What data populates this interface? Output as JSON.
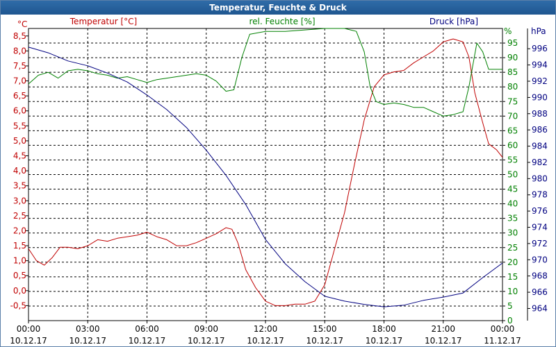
{
  "title": "Temperatur, Feuchte & Druck",
  "chart_data": {
    "type": "line",
    "grid": true,
    "x_ticks": [
      {
        "time": "00:00",
        "date": "10.12.17"
      },
      {
        "time": "03:00",
        "date": "10.12.17"
      },
      {
        "time": "06:00",
        "date": "10.12.17"
      },
      {
        "time": "09:00",
        "date": "10.12.17"
      },
      {
        "time": "12:00",
        "date": "10.12.17"
      },
      {
        "time": "15:00",
        "date": "10.12.17"
      },
      {
        "time": "18:00",
        "date": "10.12.17"
      },
      {
        "time": "21:00",
        "date": "10.12.17"
      },
      {
        "time": "00:00",
        "date": "11.12.17"
      }
    ],
    "x_range_hours": [
      0,
      24
    ],
    "axes": {
      "temperature": {
        "label": "Temperatur [°C]",
        "unit": "°C",
        "color": "#c00000",
        "range": [
          -1,
          8.75
        ],
        "ticks": [
          "8,5",
          "8,0",
          "7,5",
          "7,0",
          "6,5",
          "6,0",
          "5,5",
          "5,0",
          "4,5",
          "4,0",
          "3,5",
          "3,0",
          "2,5",
          "2,0",
          "1,5",
          "1,0",
          "0,5",
          "0,0",
          "-0,5"
        ],
        "tick_values": [
          8.5,
          8,
          7.5,
          7,
          6.5,
          6,
          5.5,
          5,
          4.5,
          4,
          3.5,
          3,
          2.5,
          2,
          1.5,
          1,
          0.5,
          0,
          -0.5
        ]
      },
      "humidity": {
        "label": "rel. Feuchte [%]",
        "unit": "%",
        "color": "#008000",
        "range": [
          0,
          100
        ],
        "ticks": [
          "95",
          "90",
          "85",
          "80",
          "75",
          "70",
          "65",
          "60",
          "55",
          "50",
          "45",
          "40",
          "35",
          "30",
          "25",
          "20",
          "15",
          "10",
          "5",
          "0"
        ],
        "tick_values": [
          95,
          90,
          85,
          80,
          75,
          70,
          65,
          60,
          55,
          50,
          45,
          40,
          35,
          30,
          25,
          20,
          15,
          10,
          5,
          0
        ]
      },
      "pressure": {
        "label": "Druck [hPa]",
        "unit": "hPa",
        "color": "#000080",
        "range": [
          962.5,
          998.5
        ],
        "ticks": [
          "996",
          "994",
          "992",
          "990",
          "988",
          "986",
          "984",
          "982",
          "980",
          "978",
          "976",
          "974",
          "972",
          "970",
          "968",
          "966",
          "964"
        ],
        "tick_values": [
          996,
          994,
          992,
          990,
          988,
          986,
          984,
          982,
          980,
          978,
          976,
          974,
          972,
          970,
          968,
          966,
          964
        ]
      }
    },
    "series": [
      {
        "name": "Temperatur [°C]",
        "axis": "temperature",
        "color": "#c00000",
        "points": [
          [
            0,
            1.4
          ],
          [
            0.4,
            1.0
          ],
          [
            0.8,
            0.85
          ],
          [
            1.2,
            1.1
          ],
          [
            1.6,
            1.45
          ],
          [
            2.0,
            1.45
          ],
          [
            2.5,
            1.4
          ],
          [
            3.0,
            1.5
          ],
          [
            3.5,
            1.7
          ],
          [
            4.0,
            1.65
          ],
          [
            4.5,
            1.75
          ],
          [
            5.0,
            1.8
          ],
          [
            5.5,
            1.85
          ],
          [
            6.0,
            1.95
          ],
          [
            6.5,
            1.8
          ],
          [
            7.0,
            1.7
          ],
          [
            7.5,
            1.5
          ],
          [
            8.0,
            1.5
          ],
          [
            8.5,
            1.6
          ],
          [
            9.0,
            1.75
          ],
          [
            9.5,
            1.9
          ],
          [
            10.0,
            2.1
          ],
          [
            10.3,
            2.05
          ],
          [
            10.6,
            1.6
          ],
          [
            11.0,
            0.7
          ],
          [
            11.5,
            0.1
          ],
          [
            12.0,
            -0.35
          ],
          [
            12.5,
            -0.5
          ],
          [
            13.0,
            -0.5
          ],
          [
            13.5,
            -0.45
          ],
          [
            14.0,
            -0.45
          ],
          [
            14.5,
            -0.35
          ],
          [
            15.0,
            0.2
          ],
          [
            15.5,
            1.4
          ],
          [
            16.0,
            2.6
          ],
          [
            16.5,
            4.2
          ],
          [
            17.0,
            5.7
          ],
          [
            17.5,
            6.8
          ],
          [
            18.0,
            7.2
          ],
          [
            18.5,
            7.3
          ],
          [
            19.0,
            7.35
          ],
          [
            19.5,
            7.6
          ],
          [
            20.0,
            7.8
          ],
          [
            20.5,
            8.0
          ],
          [
            21.0,
            8.3
          ],
          [
            21.5,
            8.4
          ],
          [
            22.0,
            8.3
          ],
          [
            22.3,
            7.8
          ],
          [
            22.6,
            6.6
          ],
          [
            23.0,
            5.6
          ],
          [
            23.3,
            4.9
          ],
          [
            23.7,
            4.7
          ],
          [
            24.0,
            4.45
          ]
        ]
      },
      {
        "name": "rel. Feuchte [%]",
        "axis": "humidity",
        "color": "#008000",
        "points": [
          [
            0,
            81
          ],
          [
            0.5,
            84
          ],
          [
            1.0,
            85
          ],
          [
            1.5,
            83
          ],
          [
            2.0,
            85.5
          ],
          [
            2.5,
            86
          ],
          [
            3.0,
            85.5
          ],
          [
            3.5,
            84.5
          ],
          [
            4.0,
            84
          ],
          [
            4.5,
            83
          ],
          [
            5.0,
            83.5
          ],
          [
            5.5,
            82.5
          ],
          [
            6.0,
            81.5
          ],
          [
            6.5,
            82.5
          ],
          [
            7.0,
            83
          ],
          [
            7.5,
            83.5
          ],
          [
            8.0,
            84
          ],
          [
            8.5,
            84.5
          ],
          [
            9.0,
            84
          ],
          [
            9.5,
            82
          ],
          [
            10.0,
            78.5
          ],
          [
            10.4,
            79
          ],
          [
            10.8,
            90
          ],
          [
            11.2,
            98
          ],
          [
            12.0,
            99
          ],
          [
            13.0,
            99
          ],
          [
            14.0,
            99.5
          ],
          [
            15.0,
            100
          ],
          [
            16.0,
            100
          ],
          [
            16.6,
            99
          ],
          [
            17.0,
            92
          ],
          [
            17.3,
            80
          ],
          [
            17.6,
            75
          ],
          [
            18.0,
            74
          ],
          [
            18.5,
            74.5
          ],
          [
            19.0,
            74
          ],
          [
            19.5,
            73
          ],
          [
            20.0,
            73
          ],
          [
            20.5,
            71.5
          ],
          [
            21.0,
            70
          ],
          [
            21.5,
            70.5
          ],
          [
            22.0,
            71.5
          ],
          [
            22.3,
            80
          ],
          [
            22.7,
            95
          ],
          [
            23.0,
            92
          ],
          [
            23.3,
            86
          ],
          [
            24.0,
            86
          ]
        ]
      },
      {
        "name": "Druck [hPa]",
        "axis": "pressure",
        "color": "#000080",
        "points": [
          [
            0,
            996.2
          ],
          [
            1.0,
            995.5
          ],
          [
            2.0,
            994.5
          ],
          [
            3.0,
            993.9
          ],
          [
            4.0,
            993.0
          ],
          [
            5.0,
            991.9
          ],
          [
            6.0,
            990.3
          ],
          [
            7.0,
            988.5
          ],
          [
            8.0,
            986.3
          ],
          [
            9.0,
            983.5
          ],
          [
            10.0,
            980.4
          ],
          [
            11.0,
            976.8
          ],
          [
            12.0,
            972.5
          ],
          [
            13.0,
            969.5
          ],
          [
            14.0,
            967.3
          ],
          [
            15.0,
            965.5
          ],
          [
            16.0,
            964.9
          ],
          [
            17.0,
            964.5
          ],
          [
            18.0,
            964.2
          ],
          [
            19.0,
            964.4
          ],
          [
            20.0,
            965.0
          ],
          [
            21.0,
            965.4
          ],
          [
            22.0,
            965.9
          ],
          [
            23.0,
            967.8
          ],
          [
            24.0,
            969.6
          ]
        ]
      }
    ]
  }
}
